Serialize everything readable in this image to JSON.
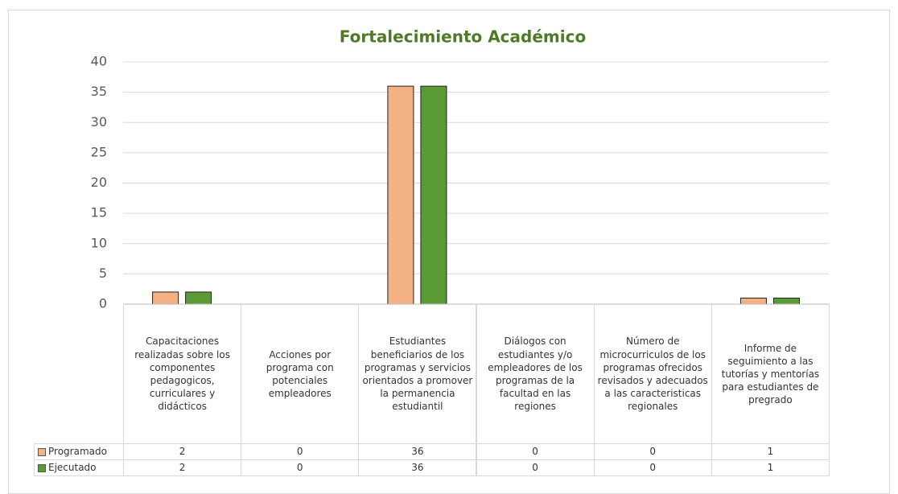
{
  "chart_data": {
    "type": "bar",
    "title": "Fortalecimiento Académico",
    "categories": [
      "Capacitaciones realizadas sobre los componentes pedagogicos, curriculares y didácticos",
      "Acciones por programa con potenciales empleadores",
      "Estudiantes beneficiarios de los programas y servicios orientados a promover la permanencia estudiantil",
      "Diálogos con estudiantes y/o empleadores de los programas de la facultad en las regiones",
      "Número de microcurriculos de los programas ofrecidos revisados y adecuados a las caracteristicas regionales",
      "Informe de seguimiento a las tutorías y mentorías para estudiantes de pregrado"
    ],
    "series": [
      {
        "name": "Programado",
        "color": "#f4b183",
        "values": [
          2,
          0,
          36,
          0,
          0,
          1
        ]
      },
      {
        "name": "Ejecutado",
        "color": "#5b9b35",
        "values": [
          2,
          0,
          36,
          0,
          0,
          1
        ]
      }
    ],
    "ylim": [
      0,
      40
    ],
    "yticks": [
      0,
      5,
      10,
      15,
      20,
      25,
      30,
      35,
      40
    ],
    "grid": true
  }
}
